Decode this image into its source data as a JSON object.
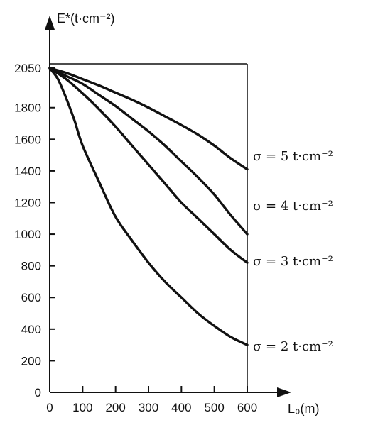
{
  "chart_data": {
    "type": "line",
    "ylabel": "E*(t·cm⁻²)",
    "xlabel": "L₀(m)",
    "xlim": [
      0,
      600
    ],
    "ylim": [
      0,
      2050
    ],
    "x_ticks": [
      0,
      100,
      200,
      300,
      400,
      500,
      600
    ],
    "x_tick_labels": [
      "0",
      "100",
      "200",
      "300",
      "400",
      "500",
      "600"
    ],
    "y_ticks": [
      0,
      200,
      400,
      600,
      800,
      1000,
      1200,
      1400,
      1600,
      1800,
      2050
    ],
    "y_tick_labels": [
      "0",
      "200",
      "400",
      "600",
      "800",
      "1000",
      "1200",
      "1400",
      "1600",
      "1800",
      "2050"
    ],
    "grid": false,
    "frame": "top and right border lines",
    "series": [
      {
        "name": "σ = 5 t·cm⁻²",
        "x": [
          0,
          50,
          100,
          150,
          200,
          250,
          300,
          350,
          400,
          450,
          500,
          550,
          600
        ],
        "values": [
          2050,
          2020,
          1980,
          1940,
          1895,
          1850,
          1800,
          1745,
          1690,
          1630,
          1560,
          1480,
          1410
        ]
      },
      {
        "name": "σ = 4 t·cm⁻²",
        "x": [
          0,
          50,
          100,
          150,
          200,
          250,
          300,
          350,
          400,
          450,
          500,
          550,
          600
        ],
        "values": [
          2050,
          2000,
          1950,
          1880,
          1810,
          1730,
          1650,
          1560,
          1460,
          1360,
          1250,
          1120,
          1000
        ]
      },
      {
        "name": "σ = 3 t·cm⁻²",
        "x": [
          0,
          50,
          100,
          150,
          200,
          250,
          300,
          350,
          400,
          450,
          500,
          550,
          600
        ],
        "values": [
          2050,
          1980,
          1890,
          1790,
          1680,
          1560,
          1440,
          1320,
          1200,
          1100,
          1000,
          900,
          820
        ]
      },
      {
        "name": "σ = 2 t·cm⁻²",
        "x": [
          0,
          25,
          50,
          75,
          100,
          150,
          200,
          250,
          300,
          350,
          400,
          450,
          500,
          550,
          600
        ],
        "values": [
          2050,
          1980,
          1860,
          1720,
          1560,
          1330,
          1110,
          960,
          820,
          700,
          600,
          500,
          420,
          350,
          300
        ]
      }
    ]
  }
}
